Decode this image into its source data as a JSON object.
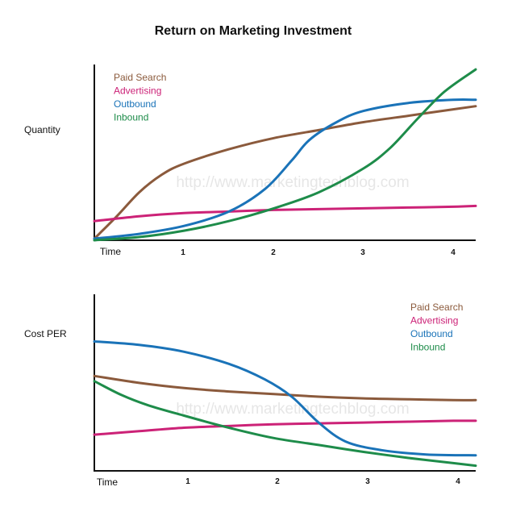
{
  "title": "Return on Marketing Investment",
  "watermark": "http://www.marketingtechblog.com",
  "colors": {
    "paid_search": "#8b5a3c",
    "advertising": "#cc2277",
    "outbound": "#1a73b8",
    "inbound": "#1e8c4a",
    "axis": "#111111"
  },
  "chart_data": [
    {
      "type": "line",
      "ylabel": "Quantity",
      "xlabel": "Time",
      "x_ticks": [
        "1",
        "2",
        "3",
        "4"
      ],
      "xlim": [
        0,
        4.25
      ],
      "ylim": [
        0,
        100
      ],
      "grid": false,
      "legend_position": "top-left",
      "series": [
        {
          "name": "Paid Search",
          "color": "#8b5a3c",
          "points": [
            [
              0,
              1
            ],
            [
              0.25,
              15
            ],
            [
              0.5,
              30
            ],
            [
              0.75,
              41
            ],
            [
              1,
              48
            ],
            [
              1.5,
              57
            ],
            [
              2,
              64
            ],
            [
              2.5,
              69
            ],
            [
              3,
              74
            ],
            [
              3.5,
              78
            ],
            [
              4,
              82
            ],
            [
              4.25,
              84
            ]
          ]
        },
        {
          "name": "Advertising",
          "color": "#cc2277",
          "points": [
            [
              0,
              12
            ],
            [
              0.5,
              15
            ],
            [
              1,
              17
            ],
            [
              1.5,
              18
            ],
            [
              2,
              19
            ],
            [
              2.5,
              19.5
            ],
            [
              3,
              20
            ],
            [
              3.5,
              20.5
            ],
            [
              4,
              21
            ],
            [
              4.25,
              21.5
            ]
          ]
        },
        {
          "name": "Outbound",
          "color": "#1a73b8",
          "points": [
            [
              0,
              1
            ],
            [
              0.5,
              4
            ],
            [
              1,
              9
            ],
            [
              1.5,
              18
            ],
            [
              1.9,
              32
            ],
            [
              2.2,
              50
            ],
            [
              2.4,
              63
            ],
            [
              2.7,
              74
            ],
            [
              3,
              81
            ],
            [
              3.5,
              86
            ],
            [
              4,
              88
            ],
            [
              4.25,
              88
            ]
          ]
        },
        {
          "name": "Inbound",
          "color": "#1e8c4a",
          "points": [
            [
              0,
              0
            ],
            [
              0.5,
              2
            ],
            [
              1,
              6
            ],
            [
              1.5,
              12
            ],
            [
              2,
              20
            ],
            [
              2.5,
              30
            ],
            [
              3,
              45
            ],
            [
              3.3,
              58
            ],
            [
              3.6,
              76
            ],
            [
              3.9,
              93
            ],
            [
              4.25,
              107
            ]
          ]
        }
      ]
    },
    {
      "type": "line",
      "ylabel": "Cost PER",
      "xlabel": "Time",
      "x_ticks": [
        "1",
        "2",
        "3",
        "4"
      ],
      "xlim": [
        0,
        4.25
      ],
      "ylim": [
        0,
        100
      ],
      "grid": false,
      "legend_position": "top-right",
      "series": [
        {
          "name": "Paid Search",
          "color": "#8b5a3c",
          "points": [
            [
              0,
              55
            ],
            [
              0.5,
              51
            ],
            [
              1,
              48
            ],
            [
              1.5,
              46
            ],
            [
              2,
              44.5
            ],
            [
              2.5,
              43
            ],
            [
              3,
              42
            ],
            [
              3.5,
              41.5
            ],
            [
              4,
              41
            ],
            [
              4.25,
              41
            ]
          ]
        },
        {
          "name": "Advertising",
          "color": "#cc2277",
          "points": [
            [
              0,
              21
            ],
            [
              0.5,
              23
            ],
            [
              1,
              25
            ],
            [
              1.5,
              26
            ],
            [
              2,
              27
            ],
            [
              2.5,
              27.5
            ],
            [
              3,
              28
            ],
            [
              3.5,
              28.5
            ],
            [
              4,
              29
            ],
            [
              4.25,
              29
            ]
          ]
        },
        {
          "name": "Outbound",
          "color": "#1a73b8",
          "points": [
            [
              0,
              75
            ],
            [
              0.5,
              73
            ],
            [
              1,
              69
            ],
            [
              1.5,
              62
            ],
            [
              1.9,
              53
            ],
            [
              2.2,
              43
            ],
            [
              2.5,
              28
            ],
            [
              2.8,
              17
            ],
            [
              3.2,
              12
            ],
            [
              3.7,
              9.5
            ],
            [
              4.25,
              9
            ]
          ]
        },
        {
          "name": "Inbound",
          "color": "#1e8c4a",
          "points": [
            [
              0,
              52
            ],
            [
              0.3,
              44
            ],
            [
              0.6,
              38
            ],
            [
              1,
              32
            ],
            [
              1.5,
              25
            ],
            [
              2,
              19
            ],
            [
              2.5,
              15
            ],
            [
              3,
              11
            ],
            [
              3.5,
              7.5
            ],
            [
              4,
              4.5
            ],
            [
              4.25,
              3
            ]
          ]
        }
      ]
    }
  ]
}
